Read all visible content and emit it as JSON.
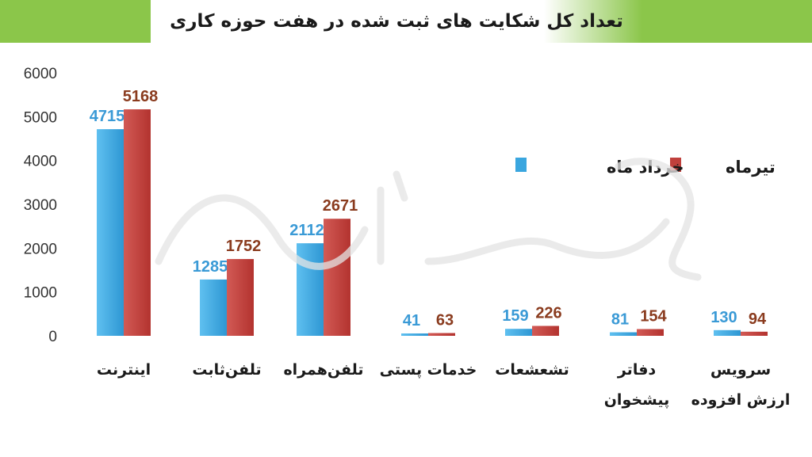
{
  "title": "تعداد کل شکایت های ثبت شده در هفت حوزه کاری",
  "colors": {
    "banner": "#8bc64a",
    "series_khordad": "#3aa6df",
    "series_tir": "#c0403c",
    "label_khordad": "#3a9ad6",
    "label_tir": "#8a3b1e"
  },
  "chart_data": {
    "type": "bar",
    "categories": [
      "اینترنت",
      "تلفن‌ثابت",
      "تلفن‌همراه",
      "خدمات پستی",
      "تشعشعات",
      "دفاتر پیشخوان",
      "سرویس ارزش افزوده"
    ],
    "category_lines": [
      [
        "اینترنت"
      ],
      [
        "تلفن‌ثابت"
      ],
      [
        "تلفن‌همراه"
      ],
      [
        "خدمات پستی"
      ],
      [
        "تشعشعات"
      ],
      [
        "دفاتر",
        "پیشخوان"
      ],
      [
        "سرویس",
        "ارزش افزوده"
      ]
    ],
    "series": [
      {
        "name": "خرداد ماه",
        "values": [
          4715,
          1285,
          2112,
          41,
          159,
          81,
          130
        ]
      },
      {
        "name": "تیرماه",
        "values": [
          5168,
          1752,
          2671,
          63,
          226,
          154,
          94
        ]
      }
    ],
    "ylim": [
      0,
      6000
    ],
    "yticks": [
      0,
      1000,
      2000,
      3000,
      4000,
      5000,
      6000
    ],
    "legend_position": "top-right",
    "grid": false,
    "xlabel": "",
    "ylabel": ""
  }
}
